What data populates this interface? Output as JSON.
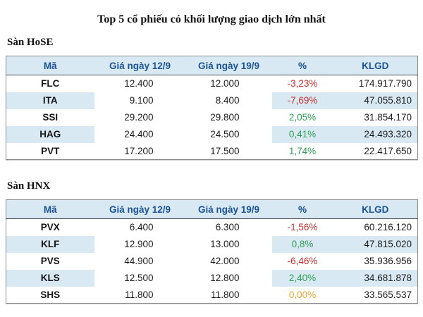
{
  "title": "Top 5 cổ phiếu có khối lượng giao dịch lớn nhất",
  "colors": {
    "band_blue": "#d9e9f3",
    "header_text_blue": "#1b5493",
    "negative_red": "#c22f2e",
    "positive_green": "#2fa053",
    "flat_orange": "#f0a531"
  },
  "tables": [
    {
      "section": "Sàn HoSE",
      "headers": [
        "Mã",
        "Giá ngày 12/9",
        "Giá ngày 19/9",
        "%",
        "KLGD"
      ],
      "rows": [
        {
          "ma": "FLC",
          "gia1": "12.400",
          "gia2": "12.000",
          "pct": "-3,23%",
          "trend": "down",
          "klgd": "174.917.790"
        },
        {
          "ma": "ITA",
          "gia1": "9.100",
          "gia2": "8.400",
          "pct": "-7,69%",
          "trend": "down",
          "klgd": "47.055.810"
        },
        {
          "ma": "SSI",
          "gia1": "29.200",
          "gia2": "29.800",
          "pct": "2,05%",
          "trend": "up",
          "klgd": "31.854.170"
        },
        {
          "ma": "HAG",
          "gia1": "24.400",
          "gia2": "24.500",
          "pct": "0,41%",
          "trend": "up",
          "klgd": "24.493.320"
        },
        {
          "ma": "PVT",
          "gia1": "17.200",
          "gia2": "17.500",
          "pct": "1,74%",
          "trend": "up",
          "klgd": "22.417.650"
        }
      ]
    },
    {
      "section": "Sàn HNX",
      "headers": [
        "Mã",
        "Giá ngày 12/9",
        "Giá ngày 19/9",
        "%",
        "KLGD"
      ],
      "rows": [
        {
          "ma": "PVX",
          "gia1": "6.400",
          "gia2": "6.300",
          "pct": "-1,56%",
          "trend": "down",
          "klgd": "60.216.120"
        },
        {
          "ma": "KLF",
          "gia1": "12.900",
          "gia2": "13.000",
          "pct": "0,8%",
          "trend": "up",
          "klgd": "47.815.020"
        },
        {
          "ma": "PVS",
          "gia1": "44.900",
          "gia2": "42.000",
          "pct": "-6,46%",
          "trend": "down",
          "klgd": "35.936.956"
        },
        {
          "ma": "KLS",
          "gia1": "12.500",
          "gia2": "12.800",
          "pct": "2,40%",
          "trend": "up",
          "klgd": "34.681.878"
        },
        {
          "ma": "SHS",
          "gia1": "11.800",
          "gia2": "11.800",
          "pct": "0,00%",
          "trend": "flat",
          "klgd": "33.565.537"
        }
      ]
    }
  ]
}
